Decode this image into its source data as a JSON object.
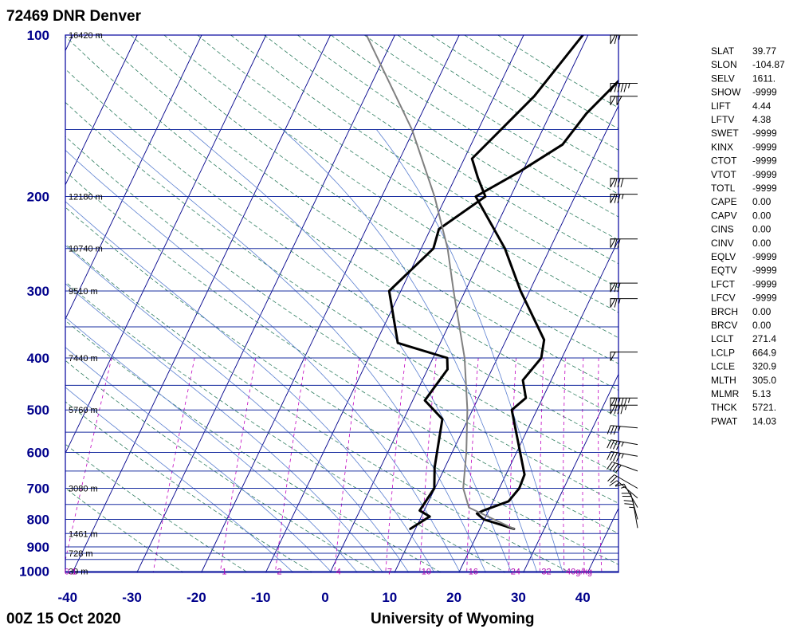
{
  "station_title": "72469 DNR Denver",
  "time_label": "00Z 15 Oct 2020",
  "source_label": "University of Wyoming",
  "colors": {
    "frame": "#00009c",
    "isobar": "#1a2fa0",
    "isotherm": "#00008b",
    "dry_adiabat": "#2e7d5f",
    "moist_adiabat": "#5a7fd0",
    "mixing_ratio": "#c000c0",
    "sounding": "#000000",
    "parcel": "#808080"
  },
  "chart_data": {
    "type": "line",
    "title": "72469 DNR Denver",
    "xlabel": "",
    "ylabel": "",
    "x_ticks": [
      -40,
      -30,
      -20,
      -10,
      0,
      10,
      20,
      30,
      40
    ],
    "y_ticks": [
      100,
      200,
      300,
      400,
      500,
      600,
      700,
      800,
      900,
      1000
    ],
    "xlim": [
      -40,
      45
    ],
    "ylim": [
      1050,
      100
    ],
    "y_scale": "log",
    "isobars": [
      100,
      150,
      200,
      250,
      300,
      350,
      400,
      450,
      500,
      550,
      600,
      650,
      700,
      750,
      800,
      850,
      900,
      925,
      950,
      1000
    ],
    "height_labels": [
      {
        "p": 100,
        "text": "16420 m"
      },
      {
        "p": 200,
        "text": "12180 m"
      },
      {
        "p": 250,
        "text": "10740 m"
      },
      {
        "p": 300,
        "text": "9510 m"
      },
      {
        "p": 400,
        "text": "7440 m"
      },
      {
        "p": 500,
        "text": "5760 m"
      },
      {
        "p": 700,
        "text": "3080 m"
      },
      {
        "p": 850,
        "text": "1461 m"
      },
      {
        "p": 925,
        "text": "728 m"
      },
      {
        "p": 1000,
        "text": "39 m"
      }
    ],
    "mixing_ratio_labels": [
      "0.1",
      "1",
      "2",
      "4",
      "7",
      "10",
      "16",
      "24",
      "32",
      "40g/kg"
    ],
    "series": [
      {
        "values": [
          {
            "p": 833,
            "t": 25.3
          },
          {
            "p": 800,
            "t": 19.9
          },
          {
            "p": 780,
            "t": 18.4
          },
          {
            "p": 770,
            "t": 19.2
          },
          {
            "p": 740,
            "t": 22.4
          },
          {
            "p": 700,
            "t": 23.1
          },
          {
            "p": 660,
            "t": 22.9
          },
          {
            "p": 500,
            "t": 16.1
          },
          {
            "p": 475,
            "t": 17.4
          },
          {
            "p": 440,
            "t": 15.6
          },
          {
            "p": 400,
            "t": 16.8
          },
          {
            "p": 370,
            "t": 15.9
          },
          {
            "p": 300,
            "t": 8.6
          },
          {
            "p": 250,
            "t": 3.0
          },
          {
            "p": 200,
            "t": -5.4
          },
          {
            "p": 180,
            "t": -0.5
          },
          {
            "p": 160,
            "t": 4.2
          },
          {
            "p": 140,
            "t": 5.6
          },
          {
            "p": 100,
            "t": 11.8
          }
        ]
      },
      {
        "values": [
          {
            "p": 833,
            "t": 9.2
          },
          {
            "p": 790,
            "t": 11.3
          },
          {
            "p": 770,
            "t": 9.3
          },
          {
            "p": 700,
            "t": 9.9
          },
          {
            "p": 640,
            "t": 8.4
          },
          {
            "p": 520,
            "t": 6.0
          },
          {
            "p": 480,
            "t": 1.9
          },
          {
            "p": 420,
            "t": 3.1
          },
          {
            "p": 400,
            "t": 2.2
          },
          {
            "p": 375,
            "t": -6.6
          },
          {
            "p": 300,
            "t": -11.8
          },
          {
            "p": 250,
            "t": -8.1
          },
          {
            "p": 230,
            "t": -8.7
          },
          {
            "p": 200,
            "t": -3.9
          },
          {
            "p": 185,
            "t": -6.4
          },
          {
            "p": 170,
            "t": -8.8
          },
          {
            "p": 130,
            "t": -3.8
          },
          {
            "p": 100,
            "t": -0.8
          }
        ]
      },
      {
        "values": [
          {
            "p": 833,
            "t": 25.3
          },
          {
            "p": 760,
            "t": 16.7
          },
          {
            "p": 700,
            "t": 14.4
          },
          {
            "p": 600,
            "t": 12.2
          },
          {
            "p": 500,
            "t": 9.2
          },
          {
            "p": 400,
            "t": 4.9
          },
          {
            "p": 300,
            "t": -1.8
          },
          {
            "p": 250,
            "t": -5.9
          },
          {
            "p": 200,
            "t": -11.8
          },
          {
            "p": 150,
            "t": -20.3
          },
          {
            "p": 100,
            "t": -34.4
          }
        ]
      }
    ],
    "wind_barbs": [
      {
        "p": 100,
        "dir": 270,
        "spd": 65
      },
      {
        "p": 123,
        "dir": 270,
        "spd": 95
      },
      {
        "p": 130,
        "dir": 270,
        "spd": 100
      },
      {
        "p": 185,
        "dir": 270,
        "spd": 80
      },
      {
        "p": 198,
        "dir": 270,
        "spd": 75
      },
      {
        "p": 240,
        "dir": 270,
        "spd": 70
      },
      {
        "p": 290,
        "dir": 270,
        "spd": 70
      },
      {
        "p": 310,
        "dir": 270,
        "spd": 65
      },
      {
        "p": 390,
        "dir": 270,
        "spd": 50
      },
      {
        "p": 475,
        "dir": 270,
        "spd": 95
      },
      {
        "p": 490,
        "dir": 270,
        "spd": 85
      },
      {
        "p": 540,
        "dir": 275,
        "spd": 35
      },
      {
        "p": 580,
        "dir": 280,
        "spd": 45
      },
      {
        "p": 610,
        "dir": 280,
        "spd": 45
      },
      {
        "p": 650,
        "dir": 290,
        "spd": 40
      },
      {
        "p": 700,
        "dir": 300,
        "spd": 20
      },
      {
        "p": 730,
        "dir": 310,
        "spd": 15
      },
      {
        "p": 760,
        "dir": 330,
        "spd": 15
      },
      {
        "p": 800,
        "dir": 345,
        "spd": 20
      },
      {
        "p": 830,
        "dir": 350,
        "spd": 25
      }
    ]
  },
  "indices": [
    {
      "label": "SLAT",
      "value": "39.77"
    },
    {
      "label": "SLON",
      "value": "-104.87"
    },
    {
      "label": "SELV",
      "value": "1611."
    },
    {
      "label": "SHOW",
      "value": "-9999"
    },
    {
      "label": "LIFT",
      "value": "4.44"
    },
    {
      "label": "LFTV",
      "value": "4.38"
    },
    {
      "label": "SWET",
      "value": "-9999"
    },
    {
      "label": "KINX",
      "value": "-9999"
    },
    {
      "label": "CTOT",
      "value": "-9999"
    },
    {
      "label": "VTOT",
      "value": "-9999"
    },
    {
      "label": "TOTL",
      "value": "-9999"
    },
    {
      "label": "CAPE",
      "value": "0.00"
    },
    {
      "label": "CAPV",
      "value": "0.00"
    },
    {
      "label": "CINS",
      "value": "0.00"
    },
    {
      "label": "CINV",
      "value": "0.00"
    },
    {
      "label": "EQLV",
      "value": "-9999"
    },
    {
      "label": "EQTV",
      "value": "-9999"
    },
    {
      "label": "LFCT",
      "value": "-9999"
    },
    {
      "label": "LFCV",
      "value": "-9999"
    },
    {
      "label": "BRCH",
      "value": "0.00"
    },
    {
      "label": "BRCV",
      "value": "0.00"
    },
    {
      "label": "LCLT",
      "value": "271.4"
    },
    {
      "label": "LCLP",
      "value": "664.9"
    },
    {
      "label": "LCLE",
      "value": "320.9"
    },
    {
      "label": "MLTH",
      "value": "305.0"
    },
    {
      "label": "MLMR",
      "value": "5.13"
    },
    {
      "label": "THCK",
      "value": "5721."
    },
    {
      "label": "PWAT",
      "value": "14.03"
    }
  ]
}
